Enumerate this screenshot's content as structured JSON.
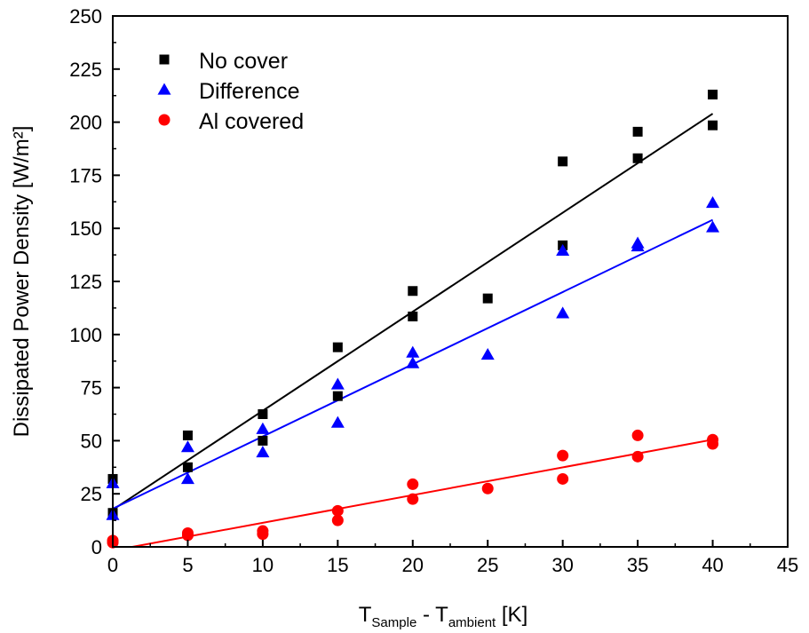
{
  "chart_data": {
    "type": "scatter",
    "title": "",
    "xlabel": {
      "main_1": "T",
      "sub_1": "Sample",
      "main_2": " - T",
      "sub_2": "ambient",
      "main_3": " [K]"
    },
    "ylabel": "Dissipated Power Density [W/m²]",
    "xlim": [
      0,
      45
    ],
    "ylim": [
      0,
      250
    ],
    "xticks": [
      0,
      5,
      10,
      15,
      20,
      25,
      30,
      35,
      40,
      45
    ],
    "yticks": [
      0,
      25,
      50,
      75,
      100,
      125,
      150,
      175,
      200,
      225,
      250
    ],
    "grid": false,
    "legend_position": "top-left",
    "series": [
      {
        "name": "No cover",
        "color": "#000000",
        "marker": "square",
        "x": [
          0,
          0,
          5,
          5,
          10,
          10,
          15,
          15,
          20,
          20,
          25,
          30,
          30,
          35,
          35,
          40,
          40
        ],
        "y": [
          32,
          16,
          52.5,
          37.5,
          62.5,
          50,
          94,
          71,
          120.5,
          108.5,
          117,
          181.5,
          142,
          195.5,
          183,
          213,
          198.5
        ],
        "fit": [
          [
            0,
            17.5
          ],
          [
            40,
            204
          ]
        ]
      },
      {
        "name": "Difference",
        "color": "#0000ff",
        "marker": "triangle",
        "x": [
          0,
          0,
          5,
          5,
          10,
          10,
          15,
          15,
          20,
          20,
          25,
          30,
          30,
          35,
          35,
          40,
          40
        ],
        "y": [
          30,
          15,
          47,
          32,
          55.5,
          44.5,
          76.5,
          58.5,
          91.5,
          86.5,
          90.5,
          139.5,
          110,
          143,
          141.5,
          162,
          150.5
        ],
        "fit": [
          [
            0,
            18
          ],
          [
            40,
            154
          ]
        ]
      },
      {
        "name": "Al covered",
        "color": "#ff0000",
        "marker": "circle",
        "x": [
          0,
          0,
          5,
          5,
          10,
          10,
          15,
          15,
          20,
          20,
          25,
          30,
          30,
          35,
          35,
          40,
          40
        ],
        "y": [
          3,
          2,
          6.5,
          5.5,
          7.5,
          6,
          17,
          12.5,
          29.5,
          22.5,
          27.5,
          43,
          32,
          52.5,
          42.5,
          50.5,
          48.5
        ],
        "fit": [
          [
            1.3,
            0
          ],
          [
            40,
            50.5
          ]
        ]
      }
    ]
  }
}
